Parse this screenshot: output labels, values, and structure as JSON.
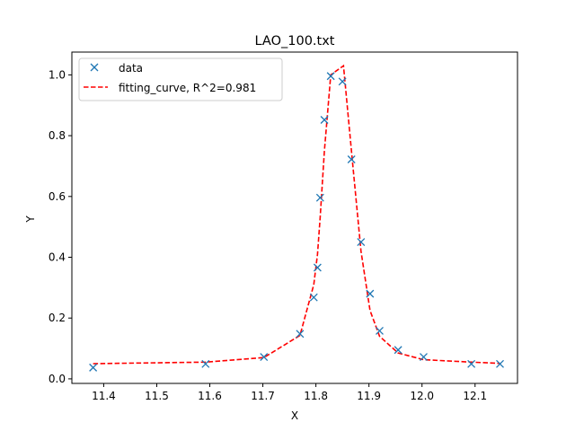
{
  "chart_data": {
    "type": "scatter",
    "title": "LAO_100.txt",
    "xlabel": "X",
    "ylabel": "Y",
    "xlim": [
      11.34,
      12.18
    ],
    "ylim": [
      -0.015,
      1.075
    ],
    "xticks": [
      11.4,
      11.5,
      11.6,
      11.7,
      11.8,
      11.9,
      12.0,
      12.1
    ],
    "xtick_labels": [
      "11.4",
      "11.5",
      "11.6",
      "11.7",
      "11.8",
      "11.9",
      "12.0",
      "12.1"
    ],
    "yticks": [
      0.0,
      0.2,
      0.4,
      0.6,
      0.8,
      1.0
    ],
    "ytick_labels": [
      "0.0",
      "0.2",
      "0.4",
      "0.6",
      "0.8",
      "1.0"
    ],
    "grid": false,
    "legend_position": "top-left",
    "series": [
      {
        "name": "data",
        "kind": "marker-x",
        "color": "#1f77b4",
        "x": [
          11.38,
          11.592,
          11.702,
          11.77,
          11.796,
          11.803,
          11.808,
          11.816,
          11.828,
          11.85,
          11.867,
          11.885,
          11.902,
          11.92,
          11.955,
          12.003,
          12.093,
          12.147
        ],
        "y": [
          0.037,
          0.049,
          0.072,
          0.148,
          0.268,
          0.366,
          0.596,
          0.852,
          0.996,
          0.978,
          0.722,
          0.45,
          0.28,
          0.158,
          0.095,
          0.072,
          0.049,
          0.049
        ]
      },
      {
        "name": "fitting_curve, R^2=0.981",
        "kind": "dashed-line",
        "color": "#ff0000",
        "x": [
          11.38,
          11.592,
          11.702,
          11.77,
          11.796,
          11.803,
          11.808,
          11.816,
          11.828,
          11.852,
          11.867,
          11.885,
          11.902,
          11.92,
          11.955,
          12.003,
          12.093,
          12.147
        ],
        "y": [
          0.05,
          0.055,
          0.07,
          0.143,
          0.31,
          0.41,
          0.53,
          0.75,
          1.0,
          1.03,
          0.75,
          0.42,
          0.225,
          0.14,
          0.085,
          0.063,
          0.055,
          0.051
        ]
      }
    ]
  }
}
